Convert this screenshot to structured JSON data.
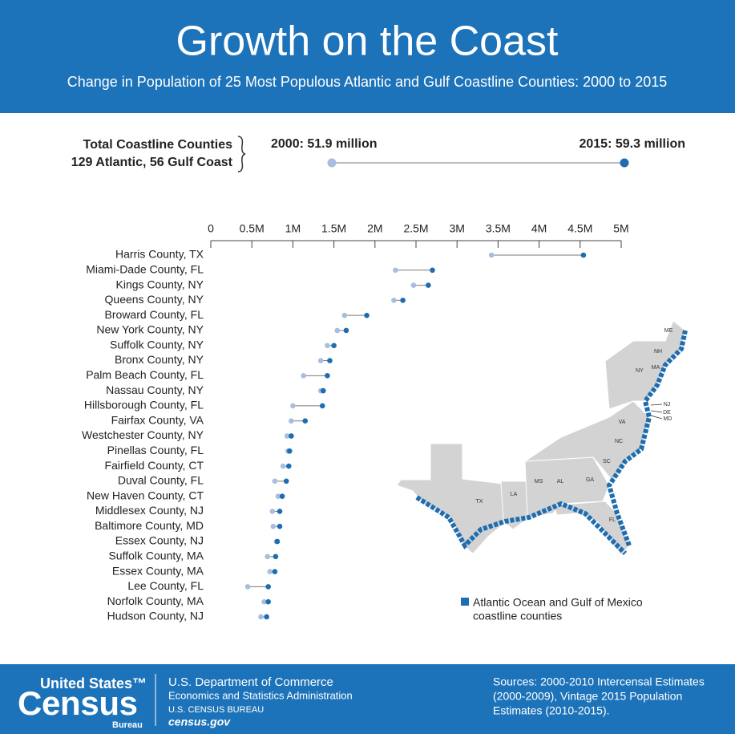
{
  "header": {
    "title": "Growth on the Coast",
    "subtitle": "Change in Population of 25 Most Populous Atlantic and Gulf Coastline Counties: 2000 to 2015"
  },
  "summary": {
    "label_lines": [
      "Total Coastline Counties",
      "129 Atlantic, 56 Gulf Coast"
    ],
    "start": "2000: 51.9 million",
    "end": "2015: 59.3 million"
  },
  "chart_data": {
    "type": "dumbbell",
    "categories": [
      "Harris County, TX",
      "Miami-Dade County, FL",
      "Kings County, NY",
      "Queens County, NY",
      "Broward County, FL",
      "New York County, NY",
      "Suffolk County, NY",
      "Bronx County, NY",
      "Palm Beach County, FL",
      "Nassau County, NY",
      "Hillsborough County, FL",
      "Fairfax County, VA",
      "Westchester County, NY",
      "Pinellas County, FL",
      "Fairfield County, CT",
      "Duval County, FL",
      "New Haven County, CT",
      "Middlesex County, NJ",
      "Baltimore County, MD",
      "Essex County, NJ",
      "Suffolk County, MA",
      "Essex County, MA",
      "Lee County, FL",
      "Norfolk County, MA",
      "Hudson County, NJ"
    ],
    "series": [
      {
        "color": "#a8bddf",
        "values": [
          3420000,
          2250000,
          2470000,
          2230000,
          1630000,
          1540000,
          1420000,
          1340000,
          1130000,
          1340000,
          1000000,
          980000,
          930000,
          940000,
          880000,
          780000,
          820000,
          750000,
          760000,
          800000,
          690000,
          720000,
          450000,
          650000,
          610000
        ]
      },
      {
        "color": "#1f6db1",
        "values": [
          4540000,
          2700000,
          2650000,
          2340000,
          1900000,
          1650000,
          1500000,
          1450000,
          1420000,
          1370000,
          1360000,
          1150000,
          980000,
          960000,
          950000,
          920000,
          870000,
          840000,
          840000,
          810000,
          790000,
          780000,
          700000,
          700000,
          680000
        ]
      }
    ],
    "connector_color": "#7a7a7a",
    "xlim": [
      0,
      5000000
    ],
    "xticks": [
      0,
      {
        "value": 500000,
        "label": "0.5M"
      },
      {
        "value": 1000000,
        "label": "1M"
      },
      {
        "value": 1500000,
        "label": "1.5M"
      },
      {
        "value": 2000000,
        "label": "2M"
      },
      {
        "value": 2500000,
        "label": "2.5M"
      },
      {
        "value": 3000000,
        "label": "3M"
      },
      {
        "value": 3500000,
        "label": "3.5M"
      },
      {
        "value": 4000000,
        "label": "4M"
      },
      {
        "value": 4500000,
        "label": "4.5M"
      },
      {
        "value": 5000000,
        "label": "5M"
      }
    ]
  },
  "map": {
    "state_labels": [
      "ME",
      "NH",
      "MA",
      "NY",
      "NJ",
      "DE",
      "MD",
      "VA",
      "NC",
      "SC",
      "GA",
      "AL",
      "MS",
      "LA",
      "TX",
      "FL"
    ],
    "legend_lines": [
      "Atlantic Ocean and Gulf of Mexico",
      "coastline counties"
    ]
  },
  "footer": {
    "logo_top": "United States™",
    "logo_main": "Census",
    "logo_bottom": "Bureau",
    "agency_lines": [
      "U.S. Department of Commerce",
      "Economics and Statistics Administration",
      "U.S. CENSUS BUREAU",
      "census.gov"
    ],
    "source_lines": [
      "Sources: 2000-2010 Intercensal Estimates",
      "(2000-2009), Vintage 2015 Population",
      "Estimates (2010-2015)."
    ]
  }
}
